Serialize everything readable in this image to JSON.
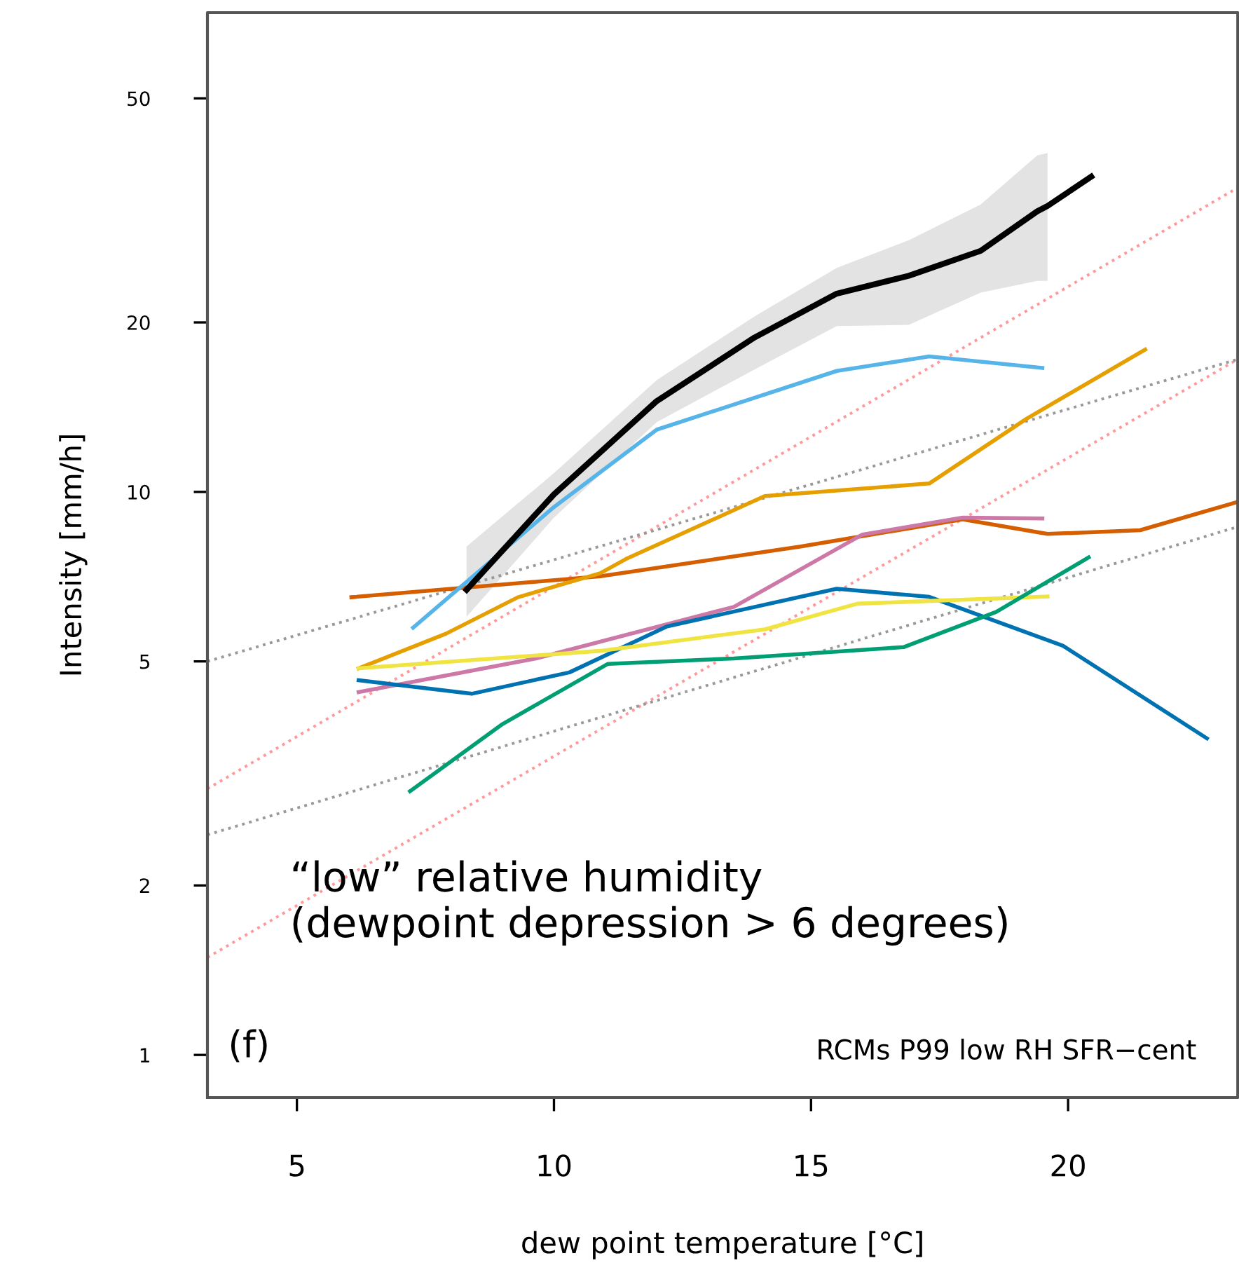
{
  "chart_data": {
    "type": "line",
    "xlabel": "dew point temperature [°C]",
    "ylabel": "Intensity [mm/h]",
    "log": "y",
    "xlim": [
      3.26,
      23.3
    ],
    "ylim": [
      0.84,
      71
    ],
    "xticks": [
      5,
      10,
      15,
      20
    ],
    "yticks": [
      1,
      2,
      5,
      10,
      20,
      50
    ],
    "grid": false,
    "legend": false,
    "marker": "none",
    "annotations": [
      "“low” relative humidity\n(dewpoint depression > 6 degrees)",
      "(f)",
      "RCMs P99 low RH SFR−cent"
    ],
    "series": [
      {
        "color": "#ff9999",
        "line_style": "dotted",
        "x": [
          3.26,
          23.3
        ],
        "values": [
          2.97,
          34.7
        ]
      },
      {
        "color": "#ff9999",
        "line_style": "dotted",
        "x": [
          3.26,
          23.3
        ],
        "values": [
          1.49,
          17.2
        ]
      },
      {
        "color": "#999999",
        "line_style": "dotted",
        "x": [
          3.26,
          23.3
        ],
        "values": [
          5.0,
          17.2
        ]
      },
      {
        "color": "#999999",
        "line_style": "dotted",
        "x": [
          3.26,
          23.3
        ],
        "values": [
          2.46,
          8.67
        ]
      },
      {
        "color": "#d55e00",
        "x": [
          6.06,
          10.9,
          14.8,
          17.95,
          19.6,
          21.4,
          23.3
        ],
        "values": [
          6.5,
          7.08,
          8.0,
          8.94,
          8.42,
          8.55,
          9.6
        ]
      },
      {
        "color": "#e69f00",
        "x": [
          6.2,
          7.9,
          9.3,
          10.9,
          11.4,
          14.1,
          17.3,
          19.2,
          21.5
        ],
        "values": [
          4.86,
          5.6,
          6.5,
          7.17,
          7.6,
          9.83,
          10.35,
          13.5,
          17.9
        ]
      },
      {
        "color": "#cc79a7",
        "x": [
          6.2,
          9.65,
          13.5,
          16.0,
          17.95,
          19.5
        ],
        "values": [
          4.41,
          5.06,
          6.25,
          8.4,
          9.0,
          8.97
        ]
      },
      {
        "color": "#0072b2",
        "x": [
          6.2,
          8.4,
          10.3,
          12.2,
          15.5,
          17.3,
          19.9,
          22.7
        ],
        "values": [
          4.63,
          4.38,
          4.78,
          5.77,
          6.73,
          6.51,
          5.33,
          3.65
        ]
      },
      {
        "color": "#f0e442",
        "x": [
          6.2,
          10.9,
          14.1,
          15.9,
          19.6
        ],
        "values": [
          4.86,
          5.22,
          5.7,
          6.33,
          6.52
        ]
      },
      {
        "color": "#009e73",
        "x": [
          7.2,
          9.0,
          11.05,
          13.5,
          16.8,
          18.6,
          20.4
        ],
        "values": [
          2.94,
          3.87,
          4.95,
          5.06,
          5.3,
          6.12,
          7.65
        ]
      },
      {
        "color": "#56b4e9",
        "x": [
          7.26,
          10.0,
          12.0,
          15.5,
          17.3,
          19.5
        ],
        "values": [
          5.74,
          9.4,
          12.9,
          16.4,
          17.4,
          16.6
        ]
      },
      {
        "color": "#000000",
        "x": [
          8.3,
          10.0,
          12.0,
          13.9,
          15.5,
          16.9,
          18.3,
          19.4,
          19.6,
          20.45
        ],
        "values": [
          6.7,
          9.9,
          14.5,
          18.8,
          22.5,
          24.2,
          26.8,
          31.5,
          32.2,
          36.3
        ],
        "lower": [
          6.0,
          9.0,
          13.3,
          16.5,
          19.7,
          19.8,
          22.6,
          23.7,
          23.7,
          null
        ],
        "upper": [
          8.0,
          10.8,
          15.8,
          20.5,
          25.0,
          28.0,
          32.4,
          39.6,
          40.0,
          null
        ]
      }
    ]
  }
}
